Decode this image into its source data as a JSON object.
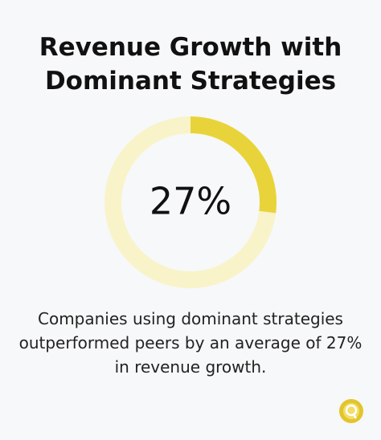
{
  "chart_data": {
    "type": "donut",
    "title": "Revenue Growth with Dominant Strategies",
    "values": [
      27
    ],
    "value_labels": [
      "27%"
    ],
    "color": "#e8d43a",
    "track_color": "#f9f3c9",
    "caption": "Companies using dominant strategies outperformed peers by an average of 27% in revenue growth."
  }
}
